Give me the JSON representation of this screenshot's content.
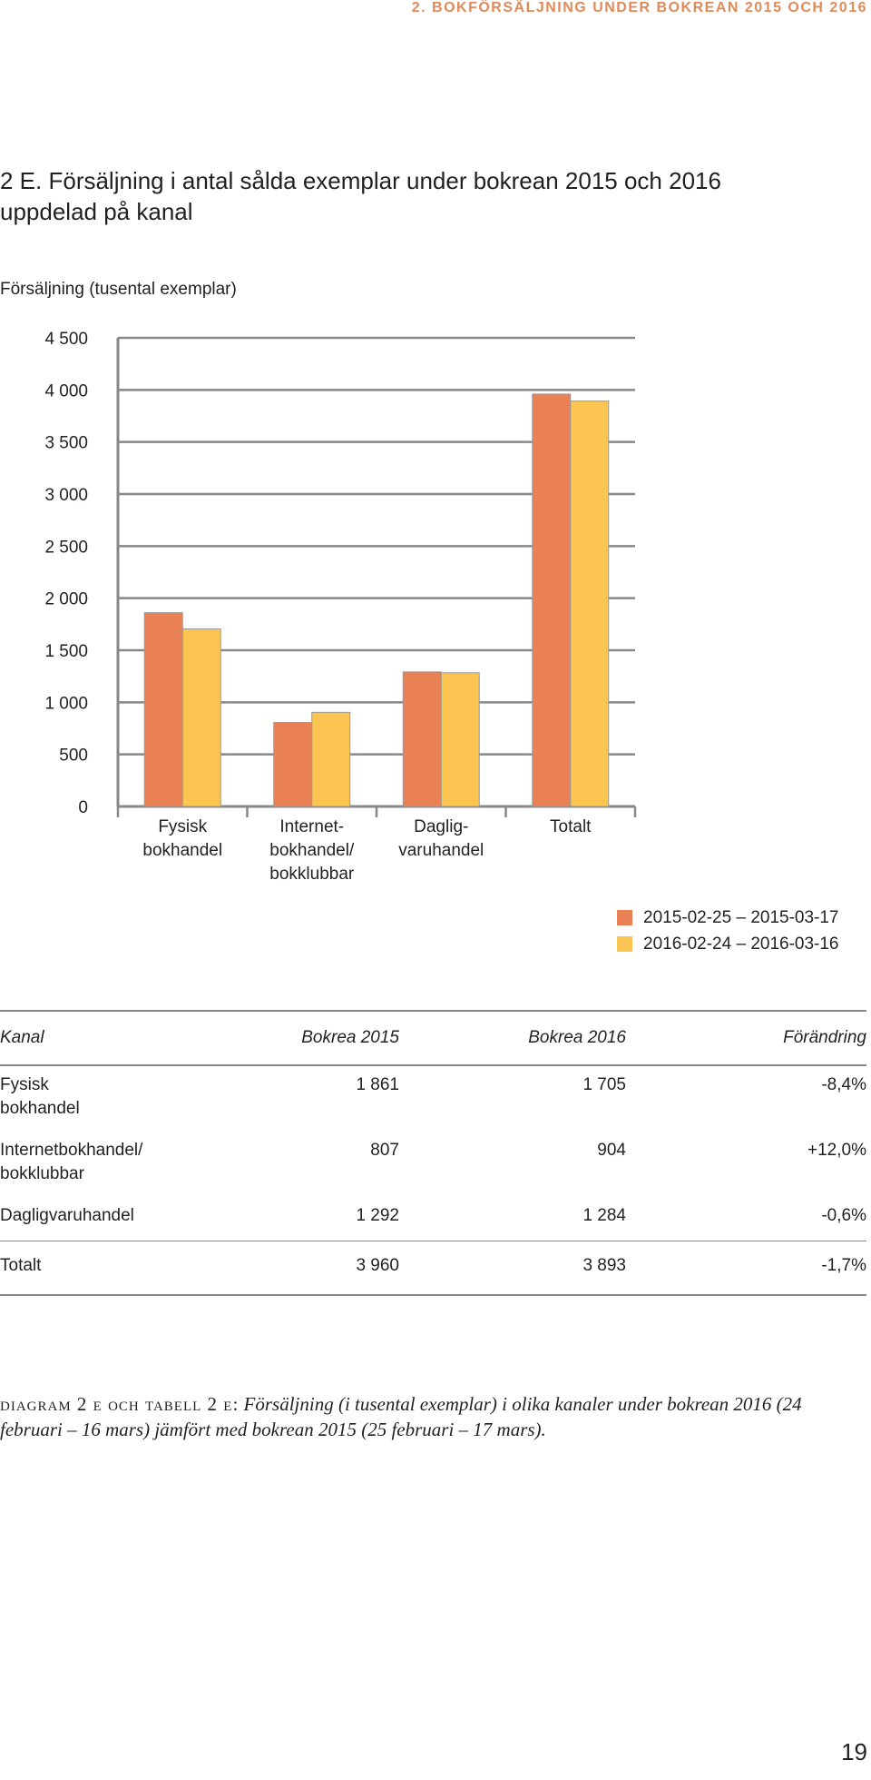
{
  "header": {
    "running_title": "2. BOKFÖRSÄLJNING UNDER BOKREAN 2015 OCH 2016"
  },
  "figure": {
    "title_line1": "2 E. Försäljning i antal sålda exemplar under bokrean 2015 och 2016",
    "title_line2": "uppdelad på kanal"
  },
  "chart_data": {
    "type": "bar",
    "title": "",
    "ylabel": "Försäljning (tusental exemplar)",
    "xlabel": "",
    "ylim": [
      0,
      4500
    ],
    "yticks": [
      "0",
      "500",
      "1 000",
      "1 500",
      "2 000",
      "2 500",
      "3 000",
      "3 500",
      "4 000",
      "4 500"
    ],
    "categories": [
      [
        "Fysisk",
        "bokhandel"
      ],
      [
        "Internet-",
        "bokhandel/",
        "bokklubbar"
      ],
      [
        "Daglig-",
        "varuhandel"
      ],
      [
        "Totalt"
      ]
    ],
    "series": [
      {
        "name": "2015-02-25 – 2015-03-17",
        "color": "#e98154",
        "values": [
          1861,
          807,
          1292,
          3960
        ]
      },
      {
        "name": "2016-02-24 – 2016-03-16",
        "color": "#fcc552",
        "values": [
          1705,
          904,
          1284,
          3893
        ]
      }
    ],
    "grid": true,
    "legend_position": "bottom-right"
  },
  "table": {
    "headers": [
      "Kanal",
      "Bokrea 2015",
      "Bokrea 2016",
      "Förändring"
    ],
    "rows": [
      {
        "kanal_line1": "Fysisk",
        "kanal_line2": "bokhandel",
        "b2015": "1 861",
        "b2016": "1 705",
        "change": "-8,4%"
      },
      {
        "kanal_line1": "Internetbokhandel/",
        "kanal_line2": "bokklubbar",
        "b2015": "807",
        "b2016": "904",
        "change": "+12,0%"
      },
      {
        "kanal_line1": "Dagligvaruhandel",
        "kanal_line2": "",
        "b2015": "1 292",
        "b2016": "1 284",
        "change": "-0,6%"
      }
    ],
    "total": {
      "kanal": "Totalt",
      "b2015": "3 960",
      "b2016": "3 893",
      "change": "-1,7%"
    }
  },
  "caption": {
    "lead": "diagram 2 e och tabell 2 e:",
    "body": " Försäljning (i tusental exemplar) i olika kanaler under bokrean 2016 (24 februari – 16 mars) jämfört med bokrean 2015 (25 februari – 17 mars)."
  },
  "page_number": "19"
}
